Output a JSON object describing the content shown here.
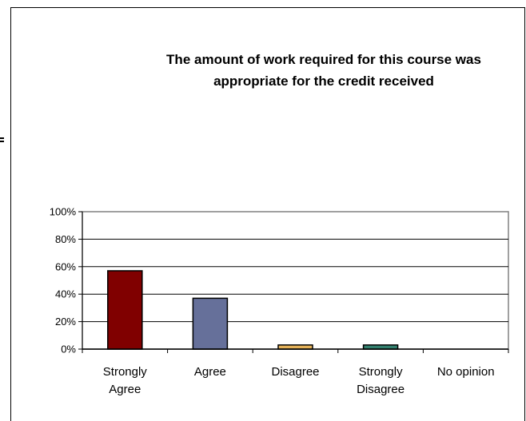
{
  "chart_data": {
    "type": "bar",
    "title_lines": [
      "The amount of work required for this course was",
      "appropriate for the credit received"
    ],
    "categories": [
      [
        "Strongly",
        "Agree"
      ],
      [
        "Agree"
      ],
      [
        "Disagree"
      ],
      [
        "Strongly",
        "Disagree"
      ],
      [
        "No opinion"
      ]
    ],
    "values": [
      0.57,
      0.37,
      0.03,
      0.03,
      0.0
    ],
    "colors": [
      "#800000",
      "#66709a",
      "#e6b35a",
      "#33806e",
      "#999999"
    ],
    "ylim": [
      0,
      1
    ],
    "yticks": [
      "0%",
      "20%",
      "40%",
      "60%",
      "80%",
      "100%"
    ],
    "grid": true,
    "legend": "none"
  }
}
